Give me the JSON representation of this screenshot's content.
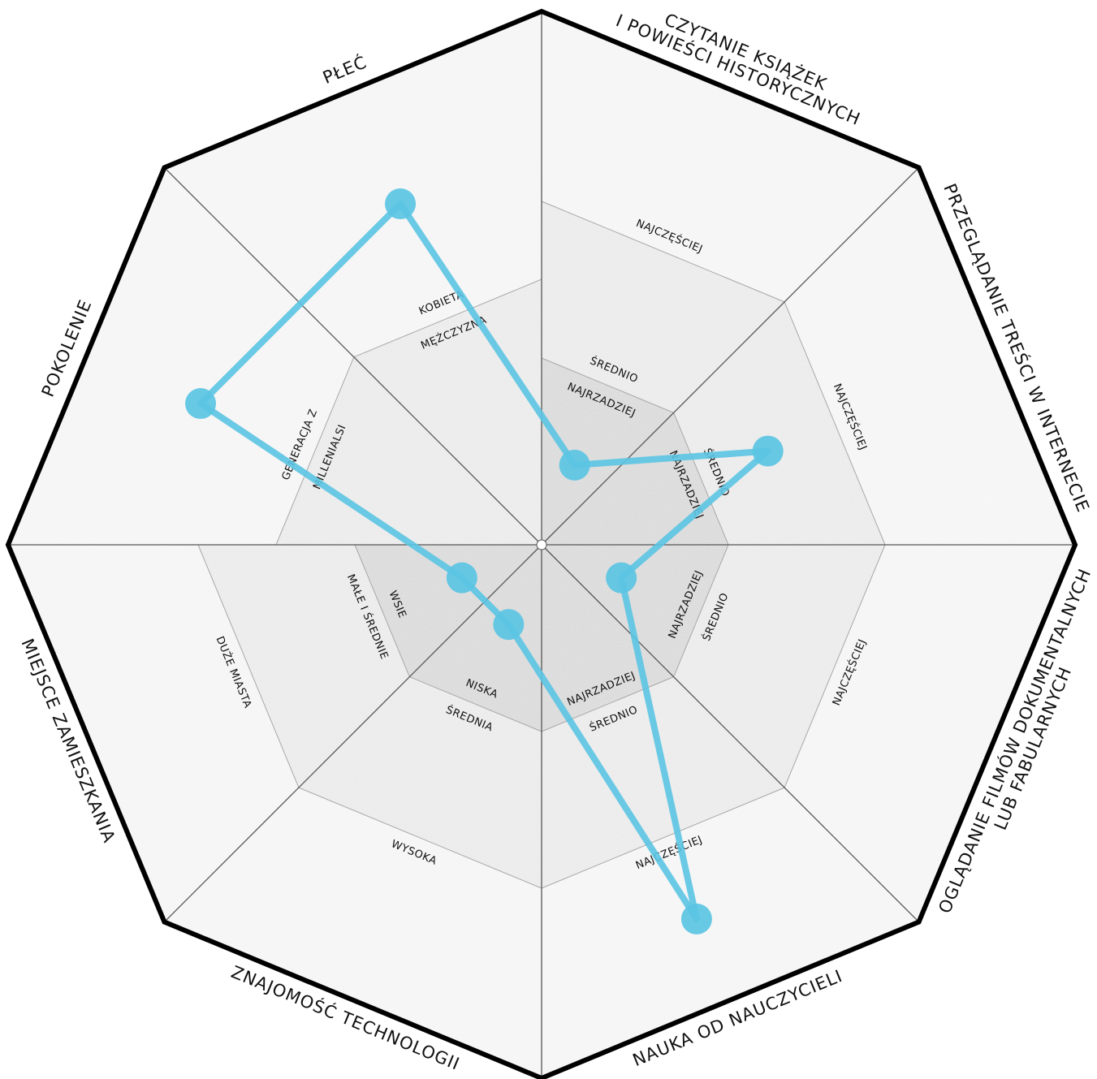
{
  "chart_data": {
    "type": "radar",
    "color": "#5bc4e3",
    "axes": [
      {
        "name": [
          "CZYTANIE KSIĄŻEK",
          "I POWIEŚCI HISTORYCZNYCH"
        ],
        "levels": [
          "NAJRZADZIEJ",
          "ŚREDNIO",
          "NAJCZĘŚCIEJ"
        ],
        "value": 1
      },
      {
        "name": [
          "PRZEGLĄDANIE TREŚCI W INTERNECIE"
        ],
        "levels": [
          "NAJRZADZIEJ",
          "ŚREDNIO",
          "NAJCZĘŚCIEJ"
        ],
        "value": 2
      },
      {
        "name": [
          "OGLĄDANIE FILMÓW DOKUMENTALNYCH",
          "LUB FABULARNYCH"
        ],
        "levels": [
          "NAJRZADZIEJ",
          "ŚREDNIO",
          "NAJCZĘŚCIEJ"
        ],
        "value": 1
      },
      {
        "name": [
          "NAUKA OD NAUCZYCIELI"
        ],
        "levels": [
          "NAJRZADZIEJ",
          "ŚREDNIO",
          "NAJCZĘŚCIEJ"
        ],
        "value": 3
      },
      {
        "name": [
          "ZNAJOMOŚĆ TECHNOLOGII"
        ],
        "levels": [
          "NISKA",
          "ŚREDNIA",
          "WYSOKA"
        ],
        "value": 1
      },
      {
        "name": [
          "MIEJSCE ZAMIESZKANIA"
        ],
        "levels": [
          "WSIE",
          "MAŁE I ŚREDNIE",
          "DUŻE MIASTA"
        ],
        "value": 1
      },
      {
        "name": [
          "POKOLENIE"
        ],
        "levels": [
          "MILLENIALSI",
          "GENERACJA Z"
        ],
        "value": 2
      },
      {
        "name": [
          "PŁEĆ"
        ],
        "levels": [
          "MĘŻCZYZNA",
          "KOBIETA"
        ],
        "value": 2
      }
    ]
  }
}
